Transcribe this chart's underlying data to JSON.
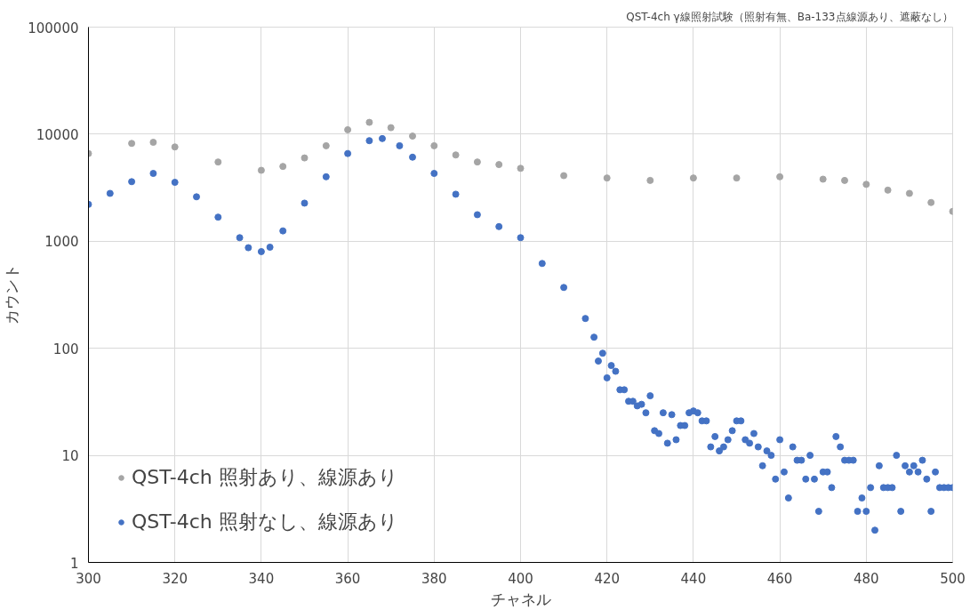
{
  "chart_data": {
    "type": "scatter",
    "title": "QST-4ch γ線照射試験（照射有無、Ba-133点線源あり、遮蔽なし）",
    "xlabel": "チャネル",
    "ylabel": "カウント",
    "xlim": [
      300,
      500
    ],
    "xticks": [
      300,
      320,
      340,
      360,
      380,
      400,
      420,
      440,
      460,
      480,
      500
    ],
    "ylim": [
      1,
      100000
    ],
    "yticks": [
      1,
      10,
      100,
      1000,
      10000,
      100000
    ],
    "log": "y",
    "grid": true,
    "legend": "bottom left",
    "marker": "circle",
    "series": [
      {
        "name": "QST-4ch 照射あり、線源あり",
        "color": "#a5a5a5",
        "x": [
          300,
          310,
          315,
          320,
          330,
          340,
          345,
          350,
          355,
          360,
          365,
          370,
          375,
          380,
          385,
          390,
          395,
          400,
          410,
          420,
          430,
          440,
          450,
          460,
          470,
          475,
          480,
          485,
          490,
          495,
          500
        ],
        "values": [
          6600,
          8200,
          8400,
          7600,
          5500,
          4600,
          5000,
          6000,
          7800,
          11000,
          12900,
          11500,
          9600,
          7800,
          6400,
          5500,
          5200,
          4800,
          4100,
          3900,
          3700,
          3900,
          3900,
          4000,
          3800,
          3700,
          3400,
          3000,
          2800,
          2300,
          1900
        ]
      },
      {
        "name": "QST-4ch 照射なし、線源あり",
        "color": "#4472c4",
        "x": [
          300,
          305,
          310,
          315,
          320,
          325,
          330,
          335,
          337,
          340,
          342,
          345,
          350,
          355,
          360,
          365,
          368,
          372,
          375,
          380,
          385,
          390,
          395,
          400,
          405,
          410,
          415,
          417,
          418,
          419,
          420,
          421,
          422,
          423,
          424,
          425,
          426,
          427,
          428,
          429,
          430,
          431,
          432,
          433,
          434,
          435,
          436,
          437,
          438,
          439,
          440,
          441,
          442,
          443,
          444,
          445,
          446,
          447,
          448,
          449,
          450,
          451,
          452,
          453,
          454,
          455,
          456,
          457,
          458,
          459,
          460,
          461,
          462,
          463,
          464,
          465,
          466,
          467,
          468,
          469,
          470,
          471,
          472,
          473,
          474,
          475,
          476,
          477,
          478,
          479,
          480,
          481,
          482,
          483,
          484,
          485,
          486,
          487,
          488,
          489,
          490,
          491,
          492,
          493,
          494,
          495,
          496,
          497,
          498,
          499,
          500
        ],
        "values": [
          2210,
          2800,
          3600,
          4300,
          3550,
          2600,
          1680,
          1080,
          870,
          800,
          880,
          1250,
          2270,
          4000,
          6600,
          8700,
          9100,
          7800,
          6100,
          4300,
          2750,
          1770,
          1370,
          1080,
          620,
          370,
          190,
          127,
          76,
          90,
          53,
          69,
          61,
          41,
          41,
          32,
          32,
          29,
          30,
          25,
          36,
          17,
          16,
          25,
          13,
          24,
          14,
          19,
          19,
          25,
          26,
          25,
          21,
          21,
          12,
          15,
          11,
          12,
          14,
          17,
          21,
          21,
          14,
          13,
          16,
          12,
          8,
          11,
          10,
          6,
          14,
          7,
          4,
          12,
          9,
          9,
          6,
          10,
          6,
          3,
          7,
          7,
          5,
          15,
          12,
          9,
          9,
          9,
          3,
          4,
          3,
          5,
          2,
          8,
          5,
          5,
          5,
          10,
          3,
          8,
          7,
          8,
          7,
          9,
          6,
          3,
          7,
          5,
          5,
          5,
          5
        ]
      }
    ]
  }
}
